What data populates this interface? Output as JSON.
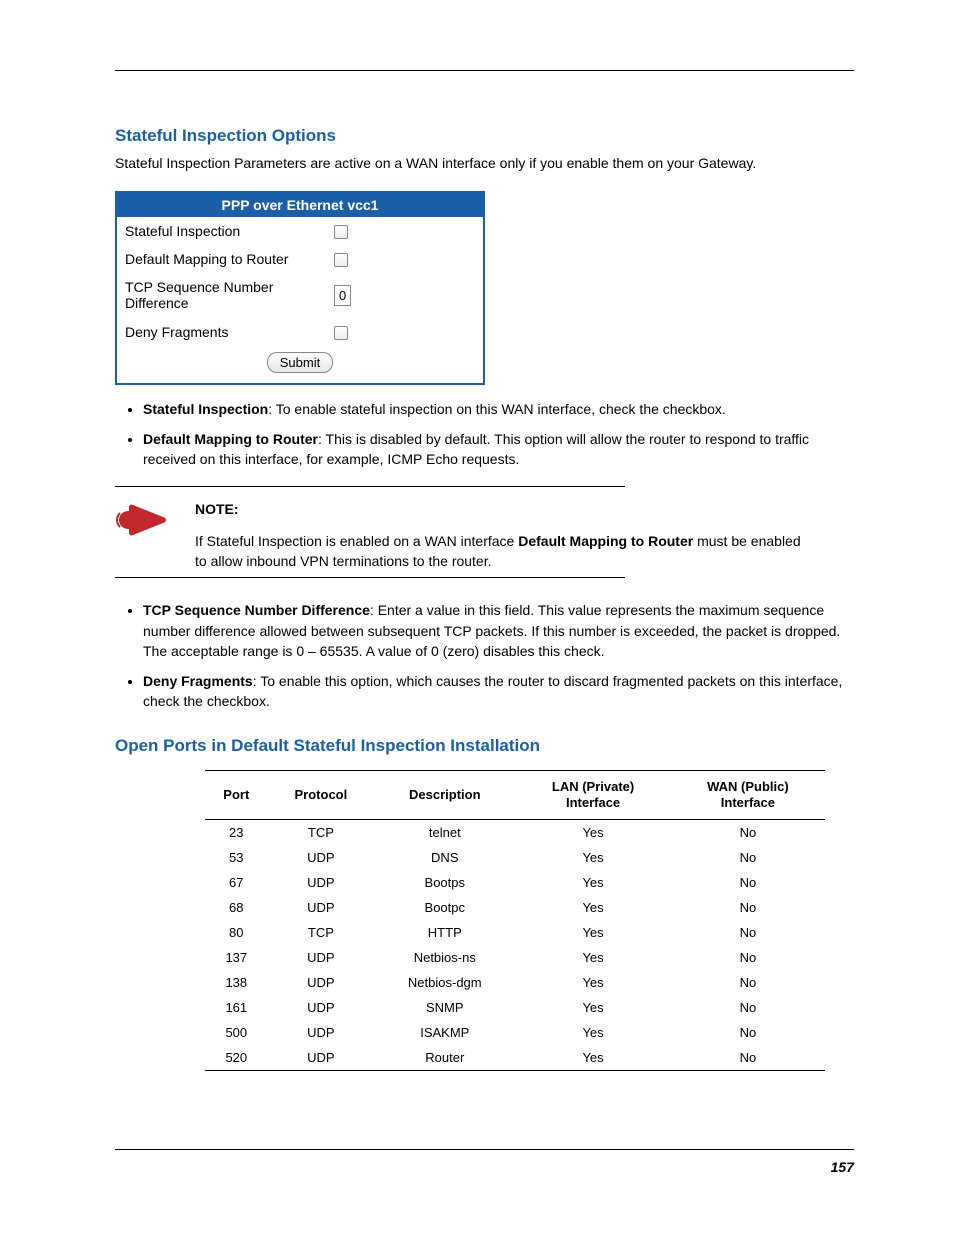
{
  "colors": {
    "heading": "#1a5fa8",
    "table_header_bg": "#1a5fa8",
    "table_header_fg": "#ffffff",
    "note_icon": "#c1272d",
    "text": "#000000",
    "rule": "#000000"
  },
  "section1": {
    "heading": "Stateful Inspection Options",
    "intro": "Stateful Inspection Parameters are active on a WAN interface only if you enable them on your Gateway."
  },
  "config_panel": {
    "title": "PPP over Ethernet vcc1",
    "rows": [
      {
        "label": "Stateful Inspection",
        "type": "checkbox",
        "value": ""
      },
      {
        "label": "Default Mapping to Router",
        "type": "checkbox",
        "value": ""
      },
      {
        "label": "TCP Sequence Number Difference",
        "type": "text",
        "value": "0"
      },
      {
        "label": "Deny Fragments",
        "type": "checkbox",
        "value": ""
      }
    ],
    "submit_label": "Submit"
  },
  "bullets_a": [
    {
      "term": "Stateful Inspection",
      "text": ": To enable stateful inspection on this WAN interface, check the checkbox."
    },
    {
      "term": "Default Mapping to Router",
      "text": ": This is disabled by default. This option will allow the router to respond to traffic received on this interface, for example, ICMP Echo requests."
    }
  ],
  "note": {
    "label": "NOTE:",
    "text_pre": "If Stateful Inspection is enabled on a WAN interface ",
    "text_bold": "Default Mapping to Router",
    "text_post": " must be enabled to allow inbound VPN terminations to the router."
  },
  "bullets_b": [
    {
      "term": "TCP Sequence Number Difference",
      "text": ": Enter a value in this field. This value represents the maximum sequence number difference allowed between subsequent TCP packets. If this number is exceeded, the packet is dropped. The acceptable range is 0 – 65535. A value of 0 (zero) disables this check."
    },
    {
      "term": "Deny Fragments",
      "text": ": To enable this option, which causes the router to discard fragmented packets on this interface, check the checkbox."
    }
  ],
  "section2": {
    "heading": "Open Ports in Default Stateful Inspection Installation"
  },
  "ports_table": {
    "columns": [
      "Port",
      "Protocol",
      "Description",
      "LAN (Private) Interface",
      "WAN (Public) Interface"
    ],
    "rows": [
      [
        "23",
        "TCP",
        "telnet",
        "Yes",
        "No"
      ],
      [
        "53",
        "UDP",
        "DNS",
        "Yes",
        "No"
      ],
      [
        "67",
        "UDP",
        "Bootps",
        "Yes",
        "No"
      ],
      [
        "68",
        "UDP",
        "Bootpc",
        "Yes",
        "No"
      ],
      [
        "80",
        "TCP",
        "HTTP",
        "Yes",
        "No"
      ],
      [
        "137",
        "UDP",
        "Netbios-ns",
        "Yes",
        "No"
      ],
      [
        "138",
        "UDP",
        "Netbios-dgm",
        "Yes",
        "No"
      ],
      [
        "161",
        "UDP",
        "SNMP",
        "Yes",
        "No"
      ],
      [
        "500",
        "UDP",
        "ISAKMP",
        "Yes",
        "No"
      ],
      [
        "520",
        "UDP",
        "Router",
        "Yes",
        "No"
      ]
    ]
  },
  "page_number": "157"
}
